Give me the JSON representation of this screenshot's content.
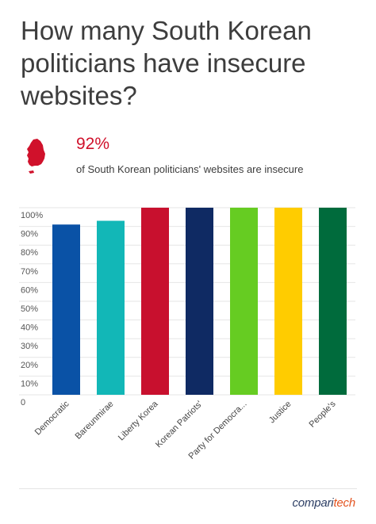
{
  "header": {
    "title": "How many South Korean politicians have insecure websites?"
  },
  "stat": {
    "value": "92%",
    "description": "of South Korean politicians' websites are insecure",
    "icon": "south-korea-map-icon",
    "color": "#d0112b"
  },
  "brand": {
    "name_main": "compari",
    "name_accent": "tech"
  },
  "chart_data": {
    "type": "bar",
    "categories": [
      "Democratic",
      "Bareunmirae",
      "Liberty Korea",
      "Korean Patriots'",
      "Party for Democra...",
      "Justice",
      "People's"
    ],
    "values": [
      91,
      93,
      100,
      100,
      100,
      100,
      100
    ],
    "colors": [
      "#0a52a6",
      "#12b7b7",
      "#c8102e",
      "#0f2a63",
      "#66cc22",
      "#ffcc00",
      "#006b3c"
    ],
    "ylim": [
      0,
      100
    ],
    "yticks": [
      0,
      10,
      20,
      30,
      40,
      50,
      60,
      70,
      80,
      90,
      100
    ],
    "ytick_labels": [
      "0",
      "10%",
      "20%",
      "30%",
      "40%",
      "50%",
      "60%",
      "70%",
      "80%",
      "90%",
      "100%"
    ],
    "grid": true,
    "legend": "none",
    "title": "",
    "xlabel": "",
    "ylabel": ""
  }
}
